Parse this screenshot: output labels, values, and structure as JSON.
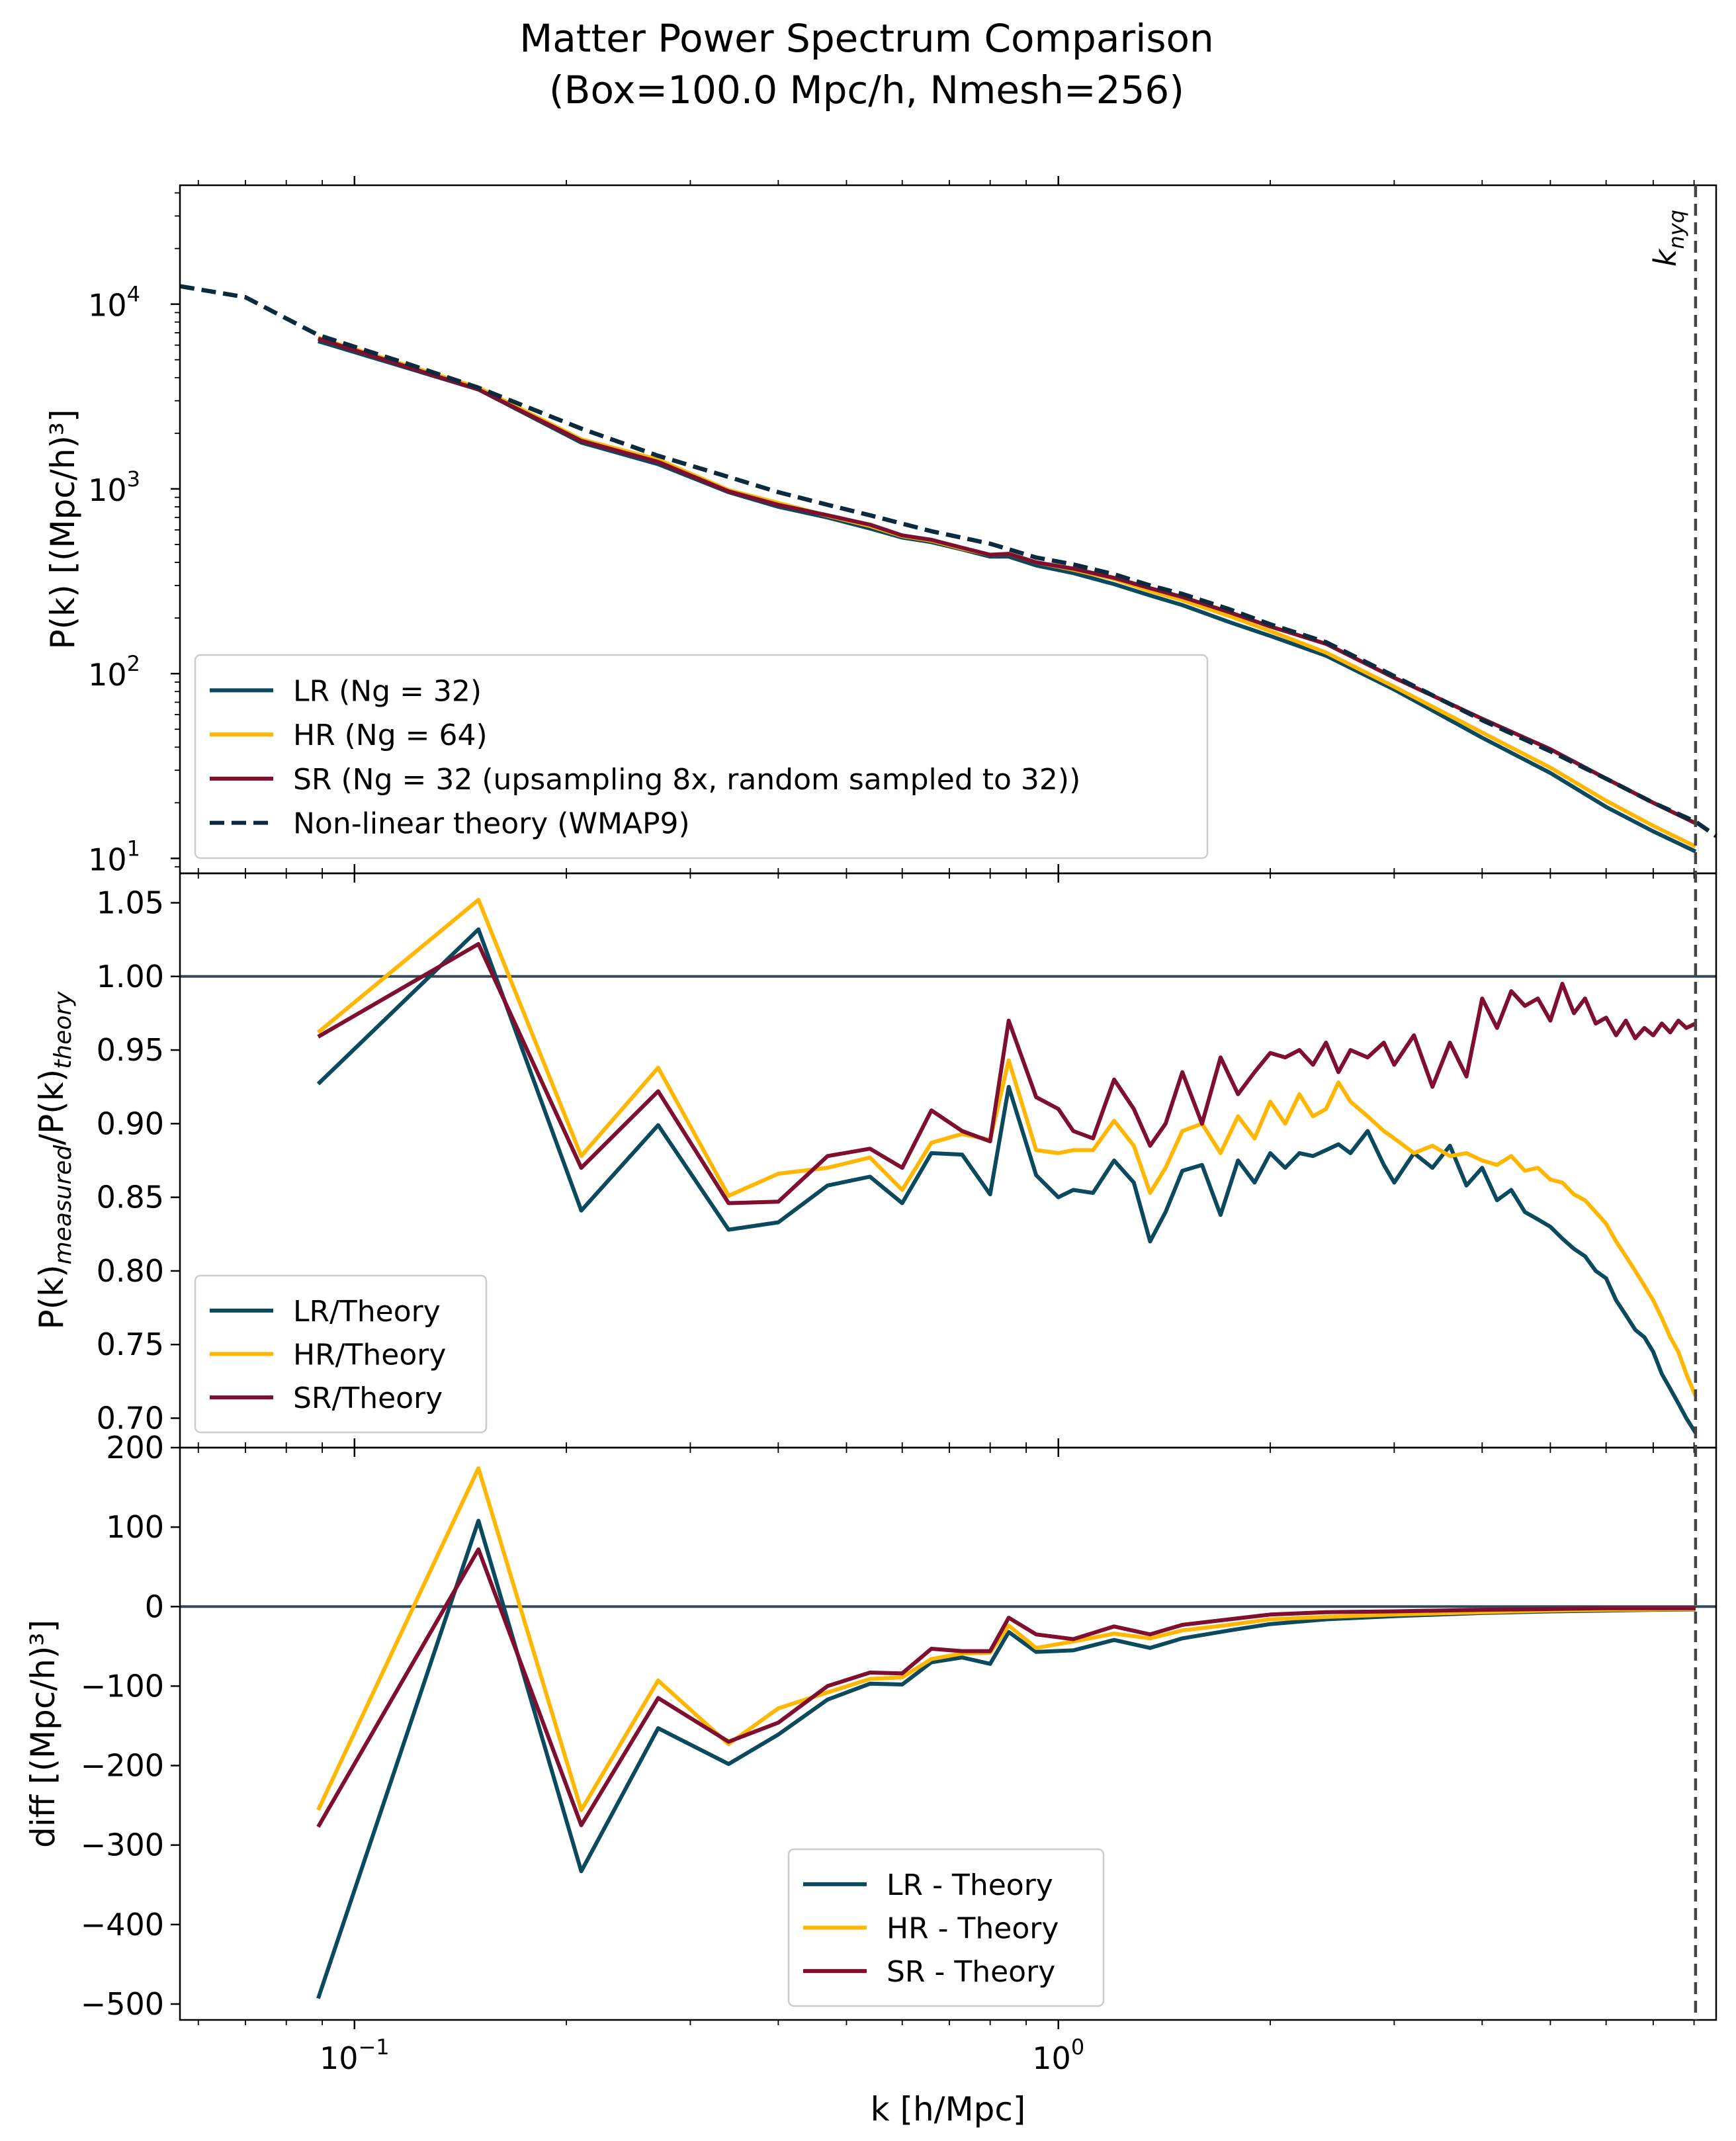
{
  "figure": {
    "title_line1": "Matter Power Spectrum Comparison",
    "title_line2": "(Box=100.0 Mpc/h, Nmesh=256)"
  },
  "colors": {
    "lr": "#0b4a5e",
    "hr": "#ffb703",
    "sr": "#800f2f",
    "theory": "#0b2a3d",
    "ref_line": "#34495e",
    "nyquist": "#444444"
  },
  "chart_data": [
    {
      "id": "power",
      "type": "line",
      "title": "",
      "xlabel": "",
      "ylabel": "P(k) [(Mpc/h)³]",
      "xscale": "log",
      "yscale": "log",
      "xlim": [
        0.0565,
        8.6
      ],
      "ylim": [
        8.3,
        44000
      ],
      "yticks": [
        {
          "v": 10,
          "e": "1"
        },
        {
          "v": 100,
          "e": "2"
        },
        {
          "v": 1000,
          "e": "3"
        },
        {
          "v": 10000,
          "e": "4"
        }
      ],
      "annotation": "k_nyq",
      "nyquist_k": 8.04,
      "legend": "lower-left",
      "series": [
        {
          "key": "lr",
          "name": "LR (Ng = 32)",
          "x": [
            0.0888,
            0.15,
            0.21,
            0.27,
            0.34,
            0.4,
            0.47,
            0.54,
            0.6,
            0.66,
            0.73,
            0.8,
            0.85,
            0.93,
            1.05,
            1.2,
            1.35,
            1.5,
            1.75,
            2.0,
            2.4,
            3.0,
            4.0,
            5.0,
            6.0,
            7.0,
            8.04
          ],
          "y": [
            6300,
            3450,
            1780,
            1360,
            960,
            800,
            700,
            610,
            545,
            515,
            470,
            430,
            430,
            385,
            350,
            305,
            265,
            235,
            190,
            160,
            125,
            82,
            45,
            29,
            19,
            14,
            10.9
          ]
        },
        {
          "key": "hr",
          "name": "HR (Ng = 64)",
          "x": [
            0.0888,
            0.15,
            0.21,
            0.27,
            0.34,
            0.4,
            0.47,
            0.54,
            0.6,
            0.66,
            0.73,
            0.8,
            0.85,
            0.93,
            1.05,
            1.2,
            1.35,
            1.5,
            1.75,
            2.0,
            2.4,
            3.0,
            4.0,
            5.0,
            6.0,
            7.0,
            8.04
          ],
          "y": [
            6580,
            3530,
            1855,
            1440,
            985,
            840,
            715,
            630,
            555,
            525,
            475,
            440,
            445,
            400,
            365,
            325,
            280,
            250,
            205,
            170,
            130,
            85,
            48,
            31,
            20.5,
            15,
            11.6
          ]
        },
        {
          "key": "sr",
          "name": "SR (Ng = 32 (upsampling 8x, random sampled to 32))",
          "x": [
            0.0888,
            0.15,
            0.21,
            0.27,
            0.34,
            0.4,
            0.47,
            0.54,
            0.6,
            0.66,
            0.73,
            0.8,
            0.85,
            0.93,
            1.05,
            1.2,
            1.35,
            1.5,
            1.75,
            2.0,
            2.4,
            3.0,
            4.0,
            5.0,
            6.0,
            7.0,
            8.04
          ],
          "y": [
            6500,
            3450,
            1820,
            1400,
            970,
            820,
            720,
            640,
            560,
            530,
            480,
            440,
            445,
            400,
            370,
            330,
            290,
            260,
            215,
            180,
            145,
            95,
            57,
            39,
            27,
            20,
            15.5
          ]
        },
        {
          "key": "theory",
          "name": "Non-linear theory (WMAP9)",
          "dashed": true,
          "x": [
            0.0565,
            0.07,
            0.0888,
            0.12,
            0.15,
            0.21,
            0.27,
            0.34,
            0.4,
            0.47,
            0.54,
            0.66,
            0.8,
            0.93,
            1.05,
            1.2,
            1.35,
            1.5,
            1.75,
            2.0,
            2.4,
            3.0,
            4.0,
            5.0,
            6.0,
            7.0,
            8.04,
            8.6
          ],
          "y": [
            12500,
            10900,
            6800,
            4700,
            3530,
            2120,
            1510,
            1160,
            960,
            820,
            720,
            590,
            505,
            425,
            390,
            345,
            300,
            270,
            223,
            185,
            148,
            97,
            56,
            38,
            27,
            20,
            15.8,
            13.2
          ]
        }
      ]
    },
    {
      "id": "ratio",
      "type": "line",
      "title": "",
      "xlabel": "",
      "ylabel": "P(k)measured/P(k)theory",
      "ylabel_main": "P(k)",
      "ylabel_sub1": "measured",
      "ylabel_mid": "/P(k)",
      "ylabel_sub2": "theory",
      "xscale": "log",
      "xlim": [
        0.0565,
        8.6
      ],
      "ylim": [
        0.68,
        1.07
      ],
      "yticks": [
        "0.70",
        "0.75",
        "0.80",
        "0.85",
        "0.90",
        "0.95",
        "1.00",
        "1.05"
      ],
      "hline": 1.0,
      "legend": "lower-left",
      "series": [
        {
          "key": "lr",
          "name": "LR/Theory",
          "x": [
            0.0888,
            0.15,
            0.21,
            0.27,
            0.34,
            0.4,
            0.47,
            0.54,
            0.6,
            0.66,
            0.73,
            0.8,
            0.85,
            0.93,
            1.0,
            1.05,
            1.12,
            1.2,
            1.28,
            1.35,
            1.42,
            1.5,
            1.6,
            1.7,
            1.8,
            1.9,
            2.0,
            2.1,
            2.2,
            2.3,
            2.4,
            2.5,
            2.6,
            2.75,
            2.9,
            3.0,
            3.2,
            3.4,
            3.6,
            3.8,
            4.0,
            4.2,
            4.4,
            4.6,
            4.8,
            5.0,
            5.2,
            5.4,
            5.6,
            5.8,
            6.0,
            6.2,
            6.4,
            6.6,
            6.8,
            7.0,
            7.2,
            7.4,
            7.6,
            7.8,
            8.04
          ],
          "y": [
            0.927,
            1.032,
            0.841,
            0.899,
            0.828,
            0.833,
            0.858,
            0.864,
            0.846,
            0.88,
            0.879,
            0.852,
            0.925,
            0.865,
            0.85,
            0.855,
            0.853,
            0.875,
            0.86,
            0.82,
            0.84,
            0.868,
            0.872,
            0.838,
            0.875,
            0.86,
            0.88,
            0.87,
            0.88,
            0.878,
            0.882,
            0.886,
            0.88,
            0.895,
            0.872,
            0.86,
            0.88,
            0.87,
            0.885,
            0.858,
            0.87,
            0.848,
            0.855,
            0.84,
            0.835,
            0.83,
            0.822,
            0.815,
            0.81,
            0.8,
            0.795,
            0.78,
            0.77,
            0.76,
            0.755,
            0.745,
            0.73,
            0.72,
            0.71,
            0.7,
            0.69
          ]
        },
        {
          "key": "hr",
          "name": "HR/Theory",
          "x": [
            0.0888,
            0.15,
            0.21,
            0.27,
            0.34,
            0.4,
            0.47,
            0.54,
            0.6,
            0.66,
            0.73,
            0.8,
            0.85,
            0.93,
            1.0,
            1.05,
            1.12,
            1.2,
            1.28,
            1.35,
            1.42,
            1.5,
            1.6,
            1.7,
            1.8,
            1.9,
            2.0,
            2.1,
            2.2,
            2.3,
            2.4,
            2.5,
            2.6,
            2.75,
            2.9,
            3.0,
            3.2,
            3.4,
            3.6,
            3.8,
            4.0,
            4.2,
            4.4,
            4.6,
            4.8,
            5.0,
            5.2,
            5.4,
            5.6,
            5.8,
            6.0,
            6.2,
            6.4,
            6.6,
            6.8,
            7.0,
            7.2,
            7.4,
            7.6,
            7.8,
            8.04
          ],
          "y": [
            0.962,
            1.052,
            0.878,
            0.938,
            0.851,
            0.866,
            0.87,
            0.877,
            0.855,
            0.887,
            0.893,
            0.889,
            0.943,
            0.882,
            0.88,
            0.882,
            0.882,
            0.902,
            0.885,
            0.853,
            0.87,
            0.895,
            0.9,
            0.88,
            0.905,
            0.89,
            0.915,
            0.9,
            0.92,
            0.905,
            0.91,
            0.928,
            0.915,
            0.905,
            0.895,
            0.89,
            0.88,
            0.885,
            0.878,
            0.88,
            0.875,
            0.872,
            0.878,
            0.868,
            0.87,
            0.862,
            0.86,
            0.852,
            0.848,
            0.84,
            0.832,
            0.82,
            0.81,
            0.8,
            0.79,
            0.78,
            0.768,
            0.755,
            0.745,
            0.73,
            0.715
          ]
        },
        {
          "key": "sr",
          "name": "SR/Theory",
          "x": [
            0.0888,
            0.15,
            0.21,
            0.27,
            0.34,
            0.4,
            0.47,
            0.54,
            0.6,
            0.66,
            0.73,
            0.8,
            0.85,
            0.93,
            1.0,
            1.05,
            1.12,
            1.2,
            1.28,
            1.35,
            1.42,
            1.5,
            1.6,
            1.7,
            1.8,
            1.9,
            2.0,
            2.1,
            2.2,
            2.3,
            2.4,
            2.5,
            2.6,
            2.75,
            2.9,
            3.0,
            3.2,
            3.4,
            3.6,
            3.8,
            4.0,
            4.2,
            4.4,
            4.6,
            4.8,
            5.0,
            5.2,
            5.4,
            5.6,
            5.8,
            6.0,
            6.2,
            6.4,
            6.6,
            6.8,
            7.0,
            7.2,
            7.4,
            7.6,
            7.8,
            8.04
          ],
          "y": [
            0.959,
            1.022,
            0.87,
            0.922,
            0.846,
            0.847,
            0.878,
            0.883,
            0.87,
            0.909,
            0.895,
            0.888,
            0.97,
            0.918,
            0.91,
            0.895,
            0.89,
            0.93,
            0.91,
            0.885,
            0.9,
            0.935,
            0.9,
            0.945,
            0.92,
            0.935,
            0.948,
            0.945,
            0.95,
            0.94,
            0.955,
            0.935,
            0.95,
            0.945,
            0.955,
            0.94,
            0.96,
            0.925,
            0.955,
            0.932,
            0.985,
            0.965,
            0.99,
            0.98,
            0.985,
            0.97,
            0.995,
            0.975,
            0.985,
            0.968,
            0.972,
            0.96,
            0.97,
            0.958,
            0.965,
            0.96,
            0.968,
            0.962,
            0.97,
            0.965,
            0.968
          ]
        }
      ]
    },
    {
      "id": "diff",
      "type": "line",
      "title": "",
      "xlabel": "k [h/Mpc]",
      "ylabel": "diff [(Mpc/h)³]",
      "xscale": "log",
      "xlim": [
        0.0565,
        8.6
      ],
      "ylim": [
        -520,
        200
      ],
      "yticks": [
        "−500",
        "−400",
        "−300",
        "−200",
        "−100",
        "0",
        "100",
        "200"
      ],
      "xticks": [
        {
          "v": 0.1,
          "e": "−1"
        },
        {
          "v": 1,
          "e": "0"
        }
      ],
      "hline": 0,
      "legend": "lower-center",
      "series": [
        {
          "key": "lr",
          "name": "LR - Theory",
          "x": [
            0.0888,
            0.15,
            0.21,
            0.27,
            0.34,
            0.4,
            0.47,
            0.54,
            0.6,
            0.66,
            0.73,
            0.8,
            0.85,
            0.93,
            1.05,
            1.2,
            1.35,
            1.5,
            1.75,
            2.0,
            2.4,
            3.0,
            4.0,
            5.0,
            6.0,
            7.0,
            8.04
          ],
          "y": [
            -493,
            108,
            -333,
            -153,
            -198,
            -161,
            -117,
            -97,
            -98,
            -70,
            -64,
            -72,
            -32,
            -57,
            -55,
            -42,
            -52,
            -40,
            -30,
            -22,
            -16,
            -12,
            -8,
            -6,
            -5,
            -4,
            -3.5
          ]
        },
        {
          "key": "hr",
          "name": "HR - Theory",
          "x": [
            0.0888,
            0.15,
            0.21,
            0.27,
            0.34,
            0.4,
            0.47,
            0.54,
            0.6,
            0.66,
            0.73,
            0.8,
            0.85,
            0.93,
            1.05,
            1.2,
            1.35,
            1.5,
            1.75,
            2.0,
            2.4,
            3.0,
            4.0,
            5.0,
            6.0,
            7.0,
            8.04
          ],
          "y": [
            -256,
            174,
            -256,
            -93,
            -173,
            -128,
            -108,
            -91,
            -89,
            -66,
            -59,
            -58,
            -24,
            -52,
            -44,
            -34,
            -40,
            -30,
            -23,
            -16,
            -13,
            -10,
            -7,
            -5,
            -4,
            -3.5,
            -3
          ]
        },
        {
          "key": "sr",
          "name": "SR - Theory",
          "x": [
            0.0888,
            0.15,
            0.21,
            0.27,
            0.34,
            0.4,
            0.47,
            0.54,
            0.6,
            0.66,
            0.73,
            0.8,
            0.85,
            0.93,
            1.05,
            1.2,
            1.35,
            1.5,
            1.75,
            2.0,
            2.4,
            3.0,
            4.0,
            5.0,
            6.0,
            7.0,
            8.04
          ],
          "y": [
            -277,
            72,
            -275,
            -115,
            -170,
            -146,
            -100,
            -83,
            -84,
            -53,
            -56,
            -56,
            -14,
            -35,
            -41,
            -25,
            -35,
            -23,
            -16,
            -10,
            -7,
            -6,
            -4,
            -3,
            -2,
            -2,
            -2
          ]
        }
      ]
    }
  ]
}
